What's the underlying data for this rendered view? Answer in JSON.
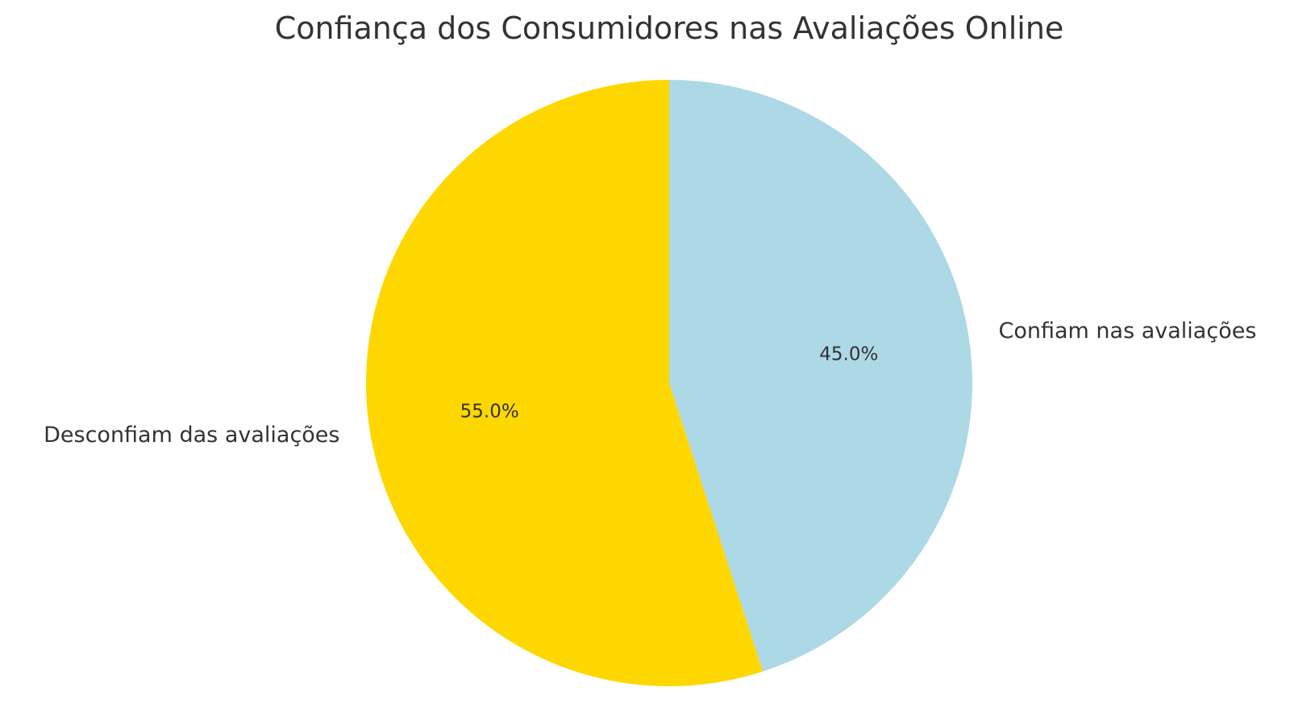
{
  "chart_data": {
    "type": "pie",
    "title": "Confiança dos Consumidores nas Avaliações Online",
    "start_angle_deg": 90,
    "direction": "clockwise",
    "slices": [
      {
        "label": "Confiam nas avaliações",
        "value": 45.0,
        "pct_label": "45.0%",
        "color": "#ADD8E6"
      },
      {
        "label": "Desconfiam das avaliações",
        "value": 55.0,
        "pct_label": "55.0%",
        "color": "#FFD700"
      }
    ]
  }
}
